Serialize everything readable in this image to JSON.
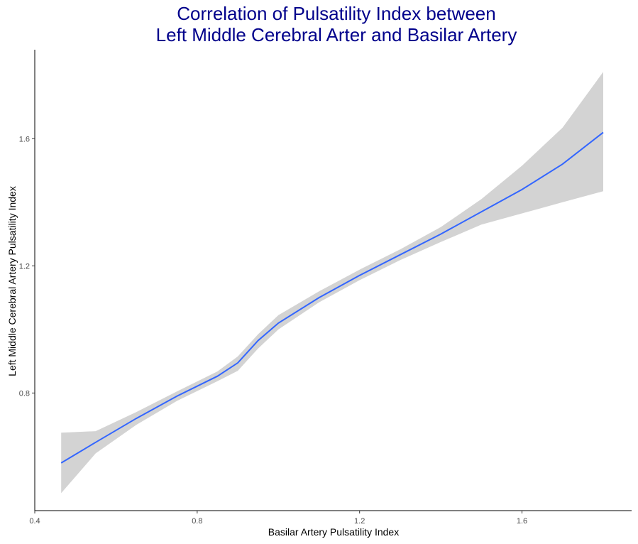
{
  "chart_data": {
    "type": "line",
    "title_lines": [
      "Correlation of Pulsatility Index between",
      "Left Middle Cerebral Arter and Basilar Artery"
    ],
    "xlabel": "Basilar Artery Pulsatility Index",
    "ylabel": "Left Middle Cerebral Artery Pulsatility Index",
    "xlim": [
      0.4,
      1.87
    ],
    "ylim": [
      0.43,
      1.88
    ],
    "x_ticks": [
      0.4,
      0.8,
      1.2,
      1.6
    ],
    "x_tick_labels": [
      "0.4",
      "0.8",
      "1.2",
      "1.6"
    ],
    "y_ticks": [
      0.8,
      1.2,
      1.6
    ],
    "y_tick_labels": [
      "0.8",
      "1.2",
      "1.6"
    ],
    "grid": false,
    "legend": "none",
    "series": [
      {
        "x": [
          0.465,
          0.55,
          0.65,
          0.75,
          0.85,
          0.9,
          0.95,
          1.0,
          1.1,
          1.2,
          1.3,
          1.4,
          1.5,
          1.6,
          1.7,
          1.8
        ],
        "y": [
          0.58,
          0.645,
          0.72,
          0.79,
          0.853,
          0.895,
          0.965,
          1.02,
          1.1,
          1.17,
          1.235,
          1.3,
          1.37,
          1.44,
          1.52,
          1.62
        ],
        "ci_lower": [
          0.485,
          0.61,
          0.7,
          0.775,
          0.837,
          0.87,
          0.94,
          1.0,
          1.085,
          1.155,
          1.218,
          1.275,
          1.33,
          1.365,
          1.4,
          1.435
        ],
        "ci_upper": [
          0.675,
          0.68,
          0.74,
          0.805,
          0.868,
          0.915,
          0.985,
          1.045,
          1.12,
          1.188,
          1.252,
          1.322,
          1.41,
          1.515,
          1.635,
          1.81
        ]
      }
    ],
    "colors": {
      "line": "#3366ff",
      "ribbon": "#d3d3d3",
      "title": "#00008b"
    }
  }
}
